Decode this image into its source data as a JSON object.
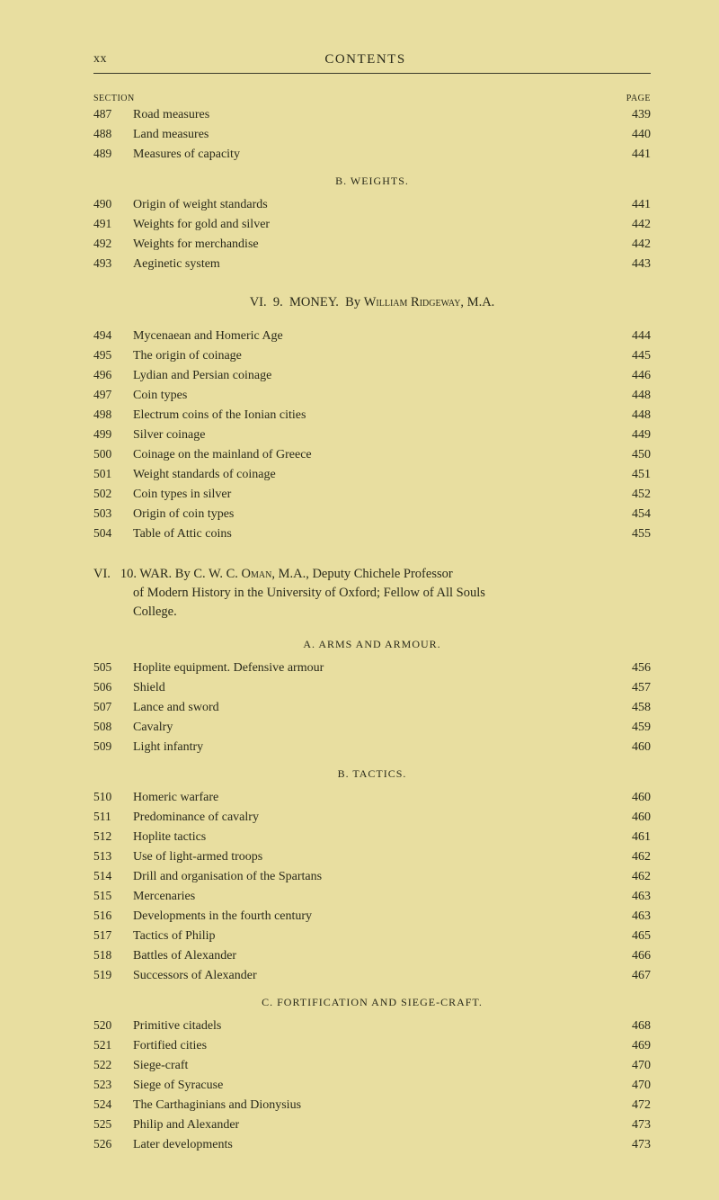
{
  "header": {
    "pageLabel": "xx",
    "title": "CONTENTS"
  },
  "colLabels": {
    "section": "SECTION",
    "page": "PAGE"
  },
  "groups": [
    {
      "entries": [
        {
          "num": "487",
          "title": "Road measures",
          "page": "439"
        },
        {
          "num": "488",
          "title": "Land measures",
          "page": "440"
        },
        {
          "num": "489",
          "title": "Measures of capacity",
          "page": "441"
        }
      ]
    },
    {
      "subheading": "B.   WEIGHTS.",
      "entries": [
        {
          "num": "490",
          "title": "Origin of weight standards",
          "page": "441"
        },
        {
          "num": "491",
          "title": "Weights for gold and silver",
          "page": "442"
        },
        {
          "num": "492",
          "title": "Weights for merchandise",
          "page": "442"
        },
        {
          "num": "493",
          "title": "Aeginetic system",
          "page": "443"
        }
      ]
    },
    {
      "chapter": {
        "roman": "VI.",
        "num": "9.",
        "title": "MONEY.",
        "by": "By",
        "author": "William Ridgeway,",
        "degree": "M.A."
      },
      "entries": [
        {
          "num": "494",
          "title": "Mycenaean and Homeric Age",
          "page": "444"
        },
        {
          "num": "495",
          "title": "The origin of coinage",
          "page": "445"
        },
        {
          "num": "496",
          "title": "Lydian and Persian coinage",
          "page": "446"
        },
        {
          "num": "497",
          "title": "Coin types",
          "page": "448"
        },
        {
          "num": "498",
          "title": "Electrum coins of the Ionian cities",
          "page": "448"
        },
        {
          "num": "499",
          "title": "Silver coinage",
          "page": "449"
        },
        {
          "num": "500",
          "title": "Coinage on the mainland of Greece",
          "page": "450"
        },
        {
          "num": "501",
          "title": "Weight standards of coinage",
          "page": "451"
        },
        {
          "num": "502",
          "title": "Coin types in silver",
          "page": "452"
        },
        {
          "num": "503",
          "title": "Origin of coin types",
          "page": "454"
        },
        {
          "num": "504",
          "title": "Table of Attic coins",
          "page": "455"
        }
      ]
    },
    {
      "paragraph": {
        "line1a": "VI.",
        "line1b": "10.  WAR.  By C. W. C. ",
        "line1author": "Oman,",
        "line1c": " M.A., Deputy Chichele Professor",
        "line2": "of Modern History in the University of Oxford; Fellow of All Souls",
        "line3": "College."
      }
    },
    {
      "subheading": "A.   ARMS AND ARMOUR.",
      "entries": [
        {
          "num": "505",
          "title": "Hoplite equipment.  Defensive armour",
          "page": "456"
        },
        {
          "num": "506",
          "title": "Shield",
          "page": "457"
        },
        {
          "num": "507",
          "title": "Lance and sword",
          "page": "458"
        },
        {
          "num": "508",
          "title": "Cavalry",
          "page": "459"
        },
        {
          "num": "509",
          "title": "Light infantry",
          "page": "460"
        }
      ]
    },
    {
      "subheading": "B.   TACTICS.",
      "entries": [
        {
          "num": "510",
          "title": "Homeric warfare",
          "page": "460"
        },
        {
          "num": "511",
          "title": "Predominance of cavalry",
          "page": "460"
        },
        {
          "num": "512",
          "title": "Hoplite tactics",
          "page": "461"
        },
        {
          "num": "513",
          "title": "Use of light-armed troops",
          "page": "462"
        },
        {
          "num": "514",
          "title": "Drill and organisation of the Spartans",
          "page": "462"
        },
        {
          "num": "515",
          "title": "Mercenaries",
          "page": "463"
        },
        {
          "num": "516",
          "title": "Developments in the fourth century",
          "page": "463"
        },
        {
          "num": "517",
          "title": "Tactics of Philip",
          "page": "465"
        },
        {
          "num": "518",
          "title": "Battles of Alexander",
          "page": "466"
        },
        {
          "num": "519",
          "title": "Successors of Alexander",
          "page": "467"
        }
      ]
    },
    {
      "subheading": "C.   FORTIFICATION AND SIEGE-CRAFT.",
      "entries": [
        {
          "num": "520",
          "title": "Primitive citadels",
          "page": "468"
        },
        {
          "num": "521",
          "title": "Fortified cities",
          "page": "469"
        },
        {
          "num": "522",
          "title": "Siege-craft",
          "page": "470"
        },
        {
          "num": "523",
          "title": "Siege of Syracuse",
          "page": "470"
        },
        {
          "num": "524",
          "title": "The Carthaginians and Dionysius",
          "page": "472"
        },
        {
          "num": "525",
          "title": "Philip and Alexander",
          "page": "473"
        },
        {
          "num": "526",
          "title": "Later developments",
          "page": "473"
        }
      ]
    }
  ]
}
